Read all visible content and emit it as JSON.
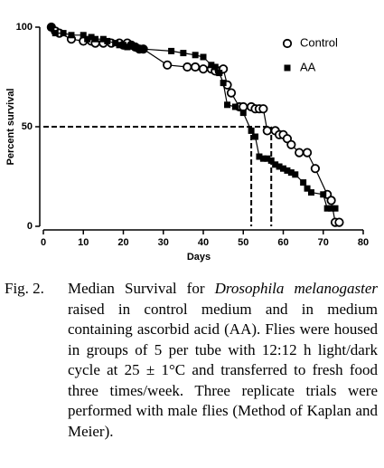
{
  "chart_data": {
    "type": "line",
    "xlabel": "Days",
    "ylabel": "Percent survival",
    "xlim": [
      0,
      80
    ],
    "xticks": [
      0,
      10,
      20,
      30,
      40,
      50,
      60,
      70,
      80
    ],
    "ylim": [
      0,
      100
    ],
    "yticks": [
      0,
      50,
      100
    ],
    "legend": "upper right",
    "median_survival": {
      "y": 50,
      "x": [
        52,
        57
      ]
    },
    "series": [
      {
        "name": "Control",
        "color": "#000000",
        "marker": "open-circle",
        "x": [
          2,
          3,
          4,
          7,
          10,
          12,
          13,
          15,
          17,
          19,
          20,
          21,
          22,
          23,
          24,
          25,
          31,
          36,
          38,
          40,
          42,
          43,
          44,
          45,
          46,
          47,
          49,
          50,
          52,
          53,
          54,
          55,
          56,
          58,
          59,
          60,
          61,
          62,
          64,
          66,
          68,
          71,
          72,
          73,
          74
        ],
        "y": [
          100,
          98,
          97,
          94,
          93,
          93,
          92,
          92,
          92,
          92,
          91,
          92,
          91,
          90,
          89,
          89,
          81,
          80,
          80,
          79,
          79,
          78,
          78,
          79,
          71,
          67,
          60,
          60,
          60,
          59,
          59,
          59,
          48,
          48,
          46,
          46,
          44,
          41,
          37,
          37,
          29,
          16,
          13,
          2,
          2
        ]
      },
      {
        "name": "AA",
        "color": "#000000",
        "marker": "filled-square",
        "x": [
          2,
          3,
          5,
          7,
          10,
          11,
          12,
          13,
          15,
          16,
          18,
          19,
          20,
          21,
          22,
          23,
          24,
          25,
          32,
          35,
          38,
          40,
          42,
          43,
          44,
          45,
          46,
          48,
          50,
          52,
          53,
          54,
          55,
          56,
          57,
          58,
          59,
          60,
          61,
          62,
          63,
          65,
          66,
          67,
          70,
          71,
          72,
          73
        ],
        "y": [
          100,
          97,
          97,
          96,
          96,
          94,
          95,
          94,
          94,
          93,
          92,
          91,
          91,
          90,
          91,
          90,
          89,
          89,
          88,
          87,
          86,
          85,
          81,
          80,
          77,
          72,
          61,
          60,
          57,
          48,
          45,
          35,
          34,
          34,
          33,
          31,
          30,
          29,
          28,
          27,
          26,
          22,
          19,
          17,
          16,
          9,
          9,
          9
        ]
      }
    ]
  },
  "caption": {
    "label": "Fig. 2.",
    "parts": [
      "Median Survival for ",
      "Drosophila melanogaster",
      " raised in control medium and in medium containing ascorbid acid (AA). Flies were housed in groups of 5 per tube with 12:12 h light/dark cycle at 25 ± 1°C and transferred to fresh food three times/week. Three replicate trials were performed with male flies (Method of Kaplan and Meier)."
    ]
  }
}
